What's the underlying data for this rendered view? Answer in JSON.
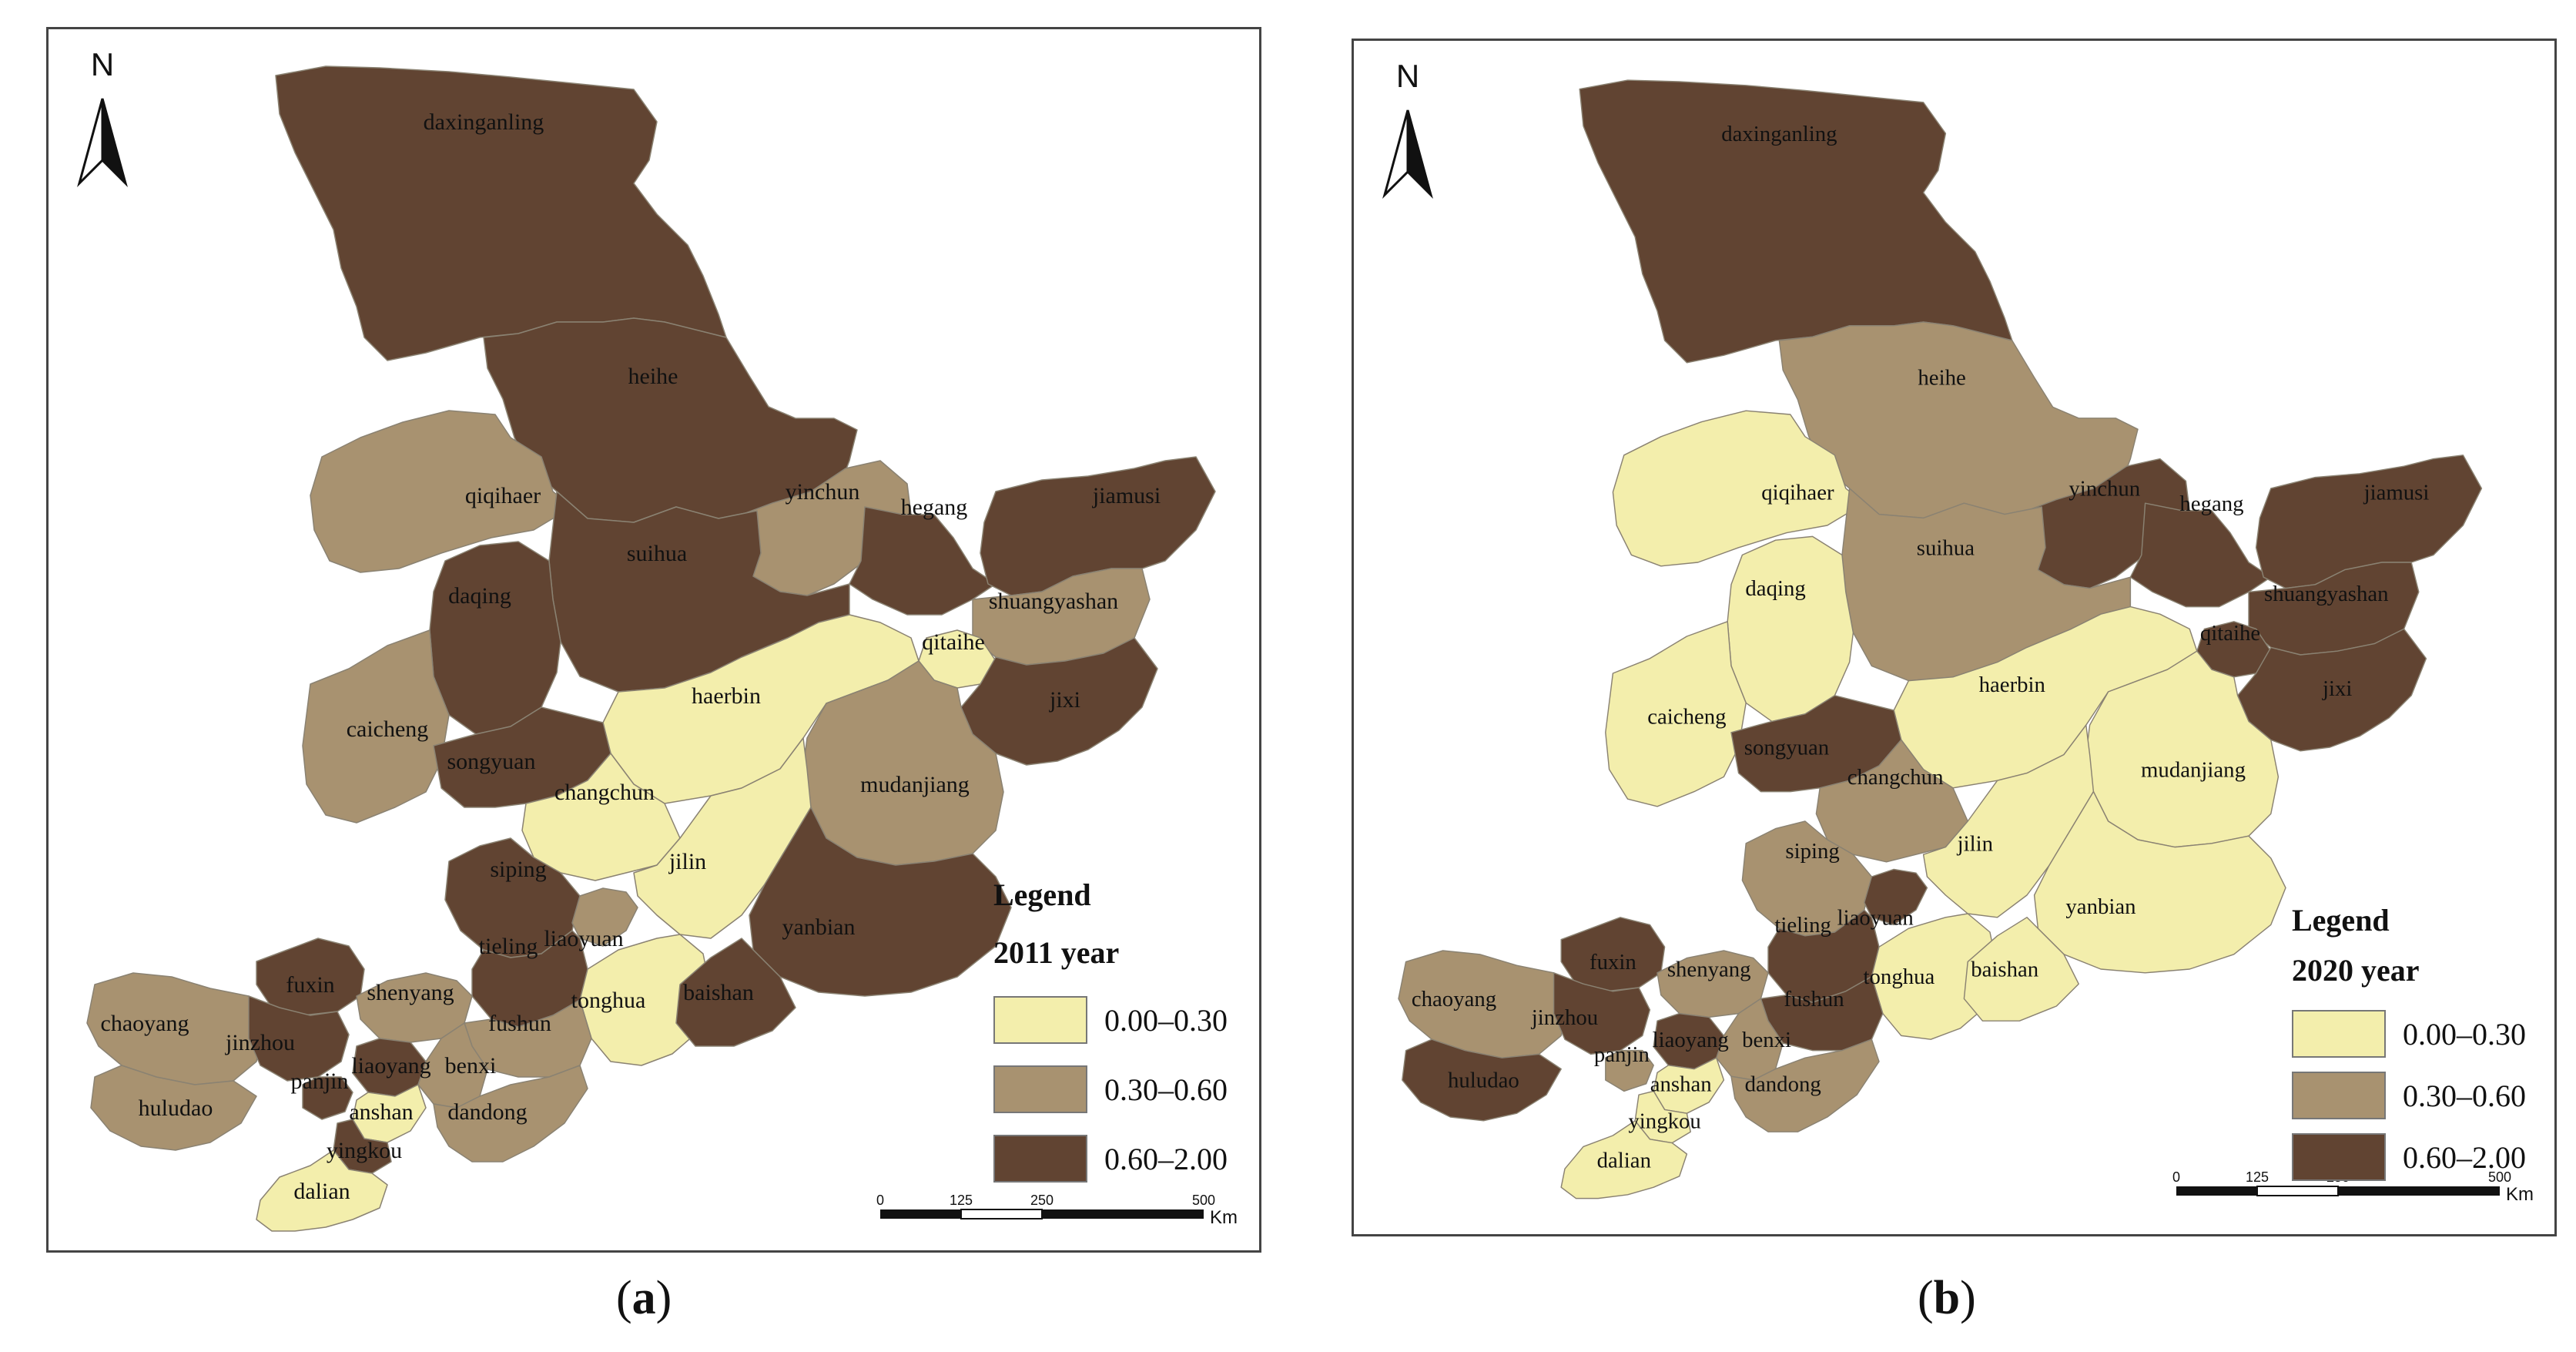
{
  "colors": {
    "low": "#f3eeac",
    "mid": "#a89270",
    "high": "#614432",
    "stroke": "#8a8272"
  },
  "north_label": "N",
  "legend": {
    "title": "Legend",
    "classes": [
      {
        "label": "0.00–0.30",
        "key": "low"
      },
      {
        "label": "0.30–0.60",
        "key": "mid"
      },
      {
        "label": "0.60–2.00",
        "key": "high"
      }
    ]
  },
  "scalebar": {
    "ticks": [
      "0",
      "125",
      "250",
      "500"
    ],
    "unit": "Km"
  },
  "panels": [
    {
      "caption_letter": "a",
      "year_label": "2011 year",
      "classes": {
        "daxinganling": "high",
        "heihe": "high",
        "qiqihaer": "mid",
        "yinchun": "mid",
        "hegang": "high",
        "jiamusi": "high",
        "suihua": "high",
        "daqing": "high",
        "shuangyashan": "mid",
        "qitaihe": "low",
        "haerbin": "low",
        "jixi": "high",
        "caicheng": "mid",
        "songyuan": "high",
        "changchun": "low",
        "mudanjiang": "mid",
        "jilin": "low",
        "siping": "high",
        "yanbian": "high",
        "liaoyuan": "mid",
        "tieling": "high",
        "fuxin": "high",
        "shenyang": "mid",
        "tonghua": "low",
        "baishan": "high",
        "chaoyang": "mid",
        "jinzhou": "high",
        "fushun": "mid",
        "liaoyang": "high",
        "benxi": "mid",
        "panjin": "high",
        "huludao": "mid",
        "anshan": "low",
        "dandong": "mid",
        "yingkou": "high",
        "dalian": "low"
      }
    },
    {
      "caption_letter": "b",
      "year_label": "2020 year",
      "classes": {
        "daxinganling": "high",
        "heihe": "mid",
        "qiqihaer": "low",
        "yinchun": "high",
        "hegang": "high",
        "jiamusi": "high",
        "suihua": "mid",
        "daqing": "low",
        "shuangyashan": "high",
        "qitaihe": "high",
        "haerbin": "low",
        "jixi": "high",
        "caicheng": "low",
        "songyuan": "high",
        "changchun": "mid",
        "mudanjiang": "low",
        "jilin": "low",
        "siping": "mid",
        "yanbian": "low",
        "liaoyuan": "high",
        "tieling": "high",
        "fuxin": "high",
        "shenyang": "mid",
        "tonghua": "low",
        "baishan": "low",
        "chaoyang": "mid",
        "jinzhou": "high",
        "fushun": "high",
        "liaoyang": "high",
        "benxi": "mid",
        "panjin": "mid",
        "huludao": "high",
        "anshan": "low",
        "dandong": "mid",
        "yingkou": "low",
        "dalian": "low"
      }
    }
  ],
  "region_names": {
    "daxinganling": "daxinganling",
    "heihe": "heihe",
    "qiqihaer": "qiqihaer",
    "yinchun": "yinchun",
    "hegang": "hegang",
    "jiamusi": "jiamusi",
    "suihua": "suihua",
    "daqing": "daqing",
    "shuangyashan": "shuangyashan",
    "qitaihe": "qitaihe",
    "haerbin": "haerbin",
    "jixi": "jixi",
    "caicheng": "caicheng",
    "songyuan": "songyuan",
    "changchun": "changchun",
    "mudanjiang": "mudanjiang",
    "jilin": "jilin",
    "siping": "siping",
    "yanbian": "yanbian",
    "liaoyuan": "liaoyuan",
    "tieling": "tieling",
    "fuxin": "fuxin",
    "shenyang": "shenyang",
    "tonghua": "tonghua",
    "baishan": "baishan",
    "chaoyang": "chaoyang",
    "jinzhou": "jinzhou",
    "fushun": "fushun",
    "liaoyang": "liaoyang",
    "benxi": "benxi",
    "panjin": "panjin",
    "huludao": "huludao",
    "anshan": "anshan",
    "dandong": "dandong",
    "yingkou": "yingkou",
    "dalian": "dalian"
  }
}
